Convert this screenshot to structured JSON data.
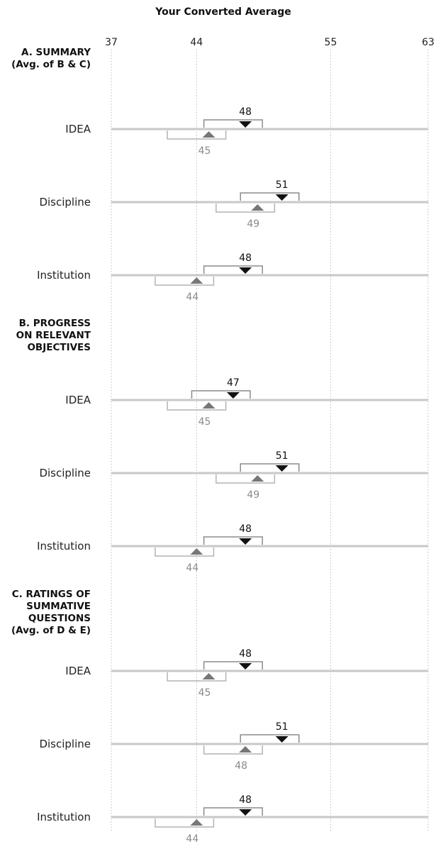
{
  "chart_data": {
    "type": "range-comparison",
    "title": "Your Converted Average",
    "xlim": [
      37,
      63
    ],
    "ticks": [
      37,
      44,
      55,
      63
    ],
    "grid": true,
    "colors": {
      "top": "#111111",
      "bottom": "#777777",
      "bottom_text": "#8a8a8a",
      "axis_line": "#c8c8c8",
      "grid": "#bbbbbb",
      "bracket_top": "#8c8c8c",
      "bracket_bottom": "#b4b4b4"
    },
    "sections": [
      {
        "title": [
          "A. SUMMARY",
          "(Avg. of B & C)"
        ],
        "rows": [
          {
            "label": "IDEA",
            "top": {
              "value": 48,
              "low": 44.6,
              "high": 49.4
            },
            "bottom": {
              "value": 45,
              "low": 41.6,
              "high": 46.4
            }
          },
          {
            "label": "Discipline",
            "top": {
              "value": 51,
              "low": 47.6,
              "high": 52.4
            },
            "bottom": {
              "value": 49,
              "low": 45.6,
              "high": 50.4
            }
          },
          {
            "label": "Institution",
            "top": {
              "value": 48,
              "low": 44.6,
              "high": 49.4
            },
            "bottom": {
              "value": 44,
              "low": 40.6,
              "high": 45.4
            }
          }
        ]
      },
      {
        "title": [
          "B. PROGRESS",
          "ON RELEVANT",
          "OBJECTIVES"
        ],
        "rows": [
          {
            "label": "IDEA",
            "top": {
              "value": 47,
              "low": 43.6,
              "high": 48.4
            },
            "bottom": {
              "value": 45,
              "low": 41.6,
              "high": 46.4
            }
          },
          {
            "label": "Discipline",
            "top": {
              "value": 51,
              "low": 47.6,
              "high": 52.4
            },
            "bottom": {
              "value": 49,
              "low": 45.6,
              "high": 50.4
            }
          },
          {
            "label": "Institution",
            "top": {
              "value": 48,
              "low": 44.6,
              "high": 49.4
            },
            "bottom": {
              "value": 44,
              "low": 40.6,
              "high": 45.4
            }
          }
        ]
      },
      {
        "title": [
          "C. RATINGS OF",
          "SUMMATIVE",
          "QUESTIONS",
          "(Avg. of D & E)"
        ],
        "rows": [
          {
            "label": "IDEA",
            "top": {
              "value": 48,
              "low": 44.6,
              "high": 49.4
            },
            "bottom": {
              "value": 45,
              "low": 41.6,
              "high": 46.4
            }
          },
          {
            "label": "Discipline",
            "top": {
              "value": 51,
              "low": 47.6,
              "high": 52.4
            },
            "bottom": {
              "value": 48,
              "low": 44.6,
              "high": 49.4
            }
          },
          {
            "label": "Institution",
            "top": {
              "value": 48,
              "low": 44.6,
              "high": 49.4
            },
            "bottom": {
              "value": 44,
              "low": 40.6,
              "high": 45.4
            }
          }
        ]
      }
    ]
  }
}
